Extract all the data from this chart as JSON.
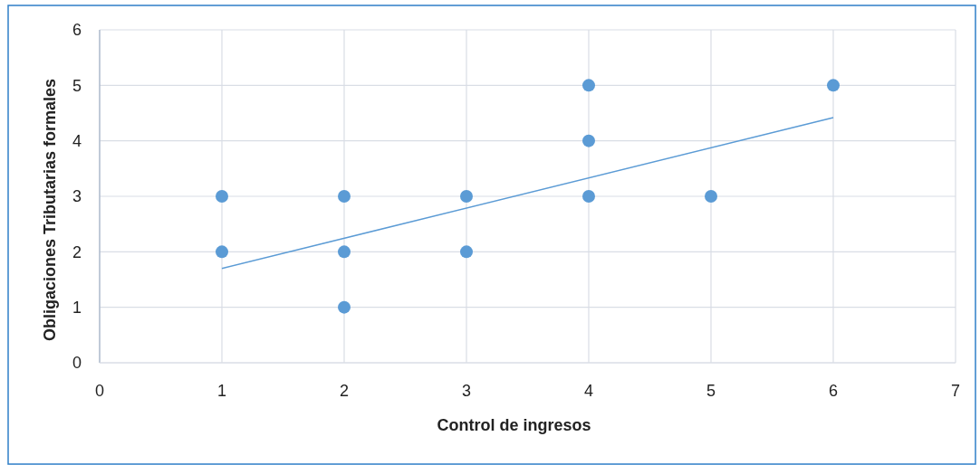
{
  "chart_data": {
    "type": "scatter",
    "xlabel": "Control de ingresos",
    "ylabel": "Obligaciones Tributarias formales",
    "xlim": [
      0,
      7
    ],
    "xticks": [
      0,
      1,
      2,
      3,
      4,
      5,
      6,
      7
    ],
    "ylim": [
      0,
      6
    ],
    "yticks": [
      0,
      1,
      2,
      3,
      4,
      5,
      6
    ],
    "grid": true,
    "series": [
      {
        "marker": "circle",
        "color": "#5b9bd5",
        "x": [
          1,
          1,
          2,
          2,
          2,
          3,
          3,
          4,
          4,
          4,
          5,
          6
        ],
        "values": [
          3,
          2,
          3,
          2,
          1,
          3,
          2,
          5,
          4,
          3,
          3,
          5
        ]
      },
      {
        "type": "line",
        "color": "#5b9bd5",
        "x": [
          1,
          6
        ],
        "values": [
          1.7,
          4.42
        ]
      }
    ]
  }
}
